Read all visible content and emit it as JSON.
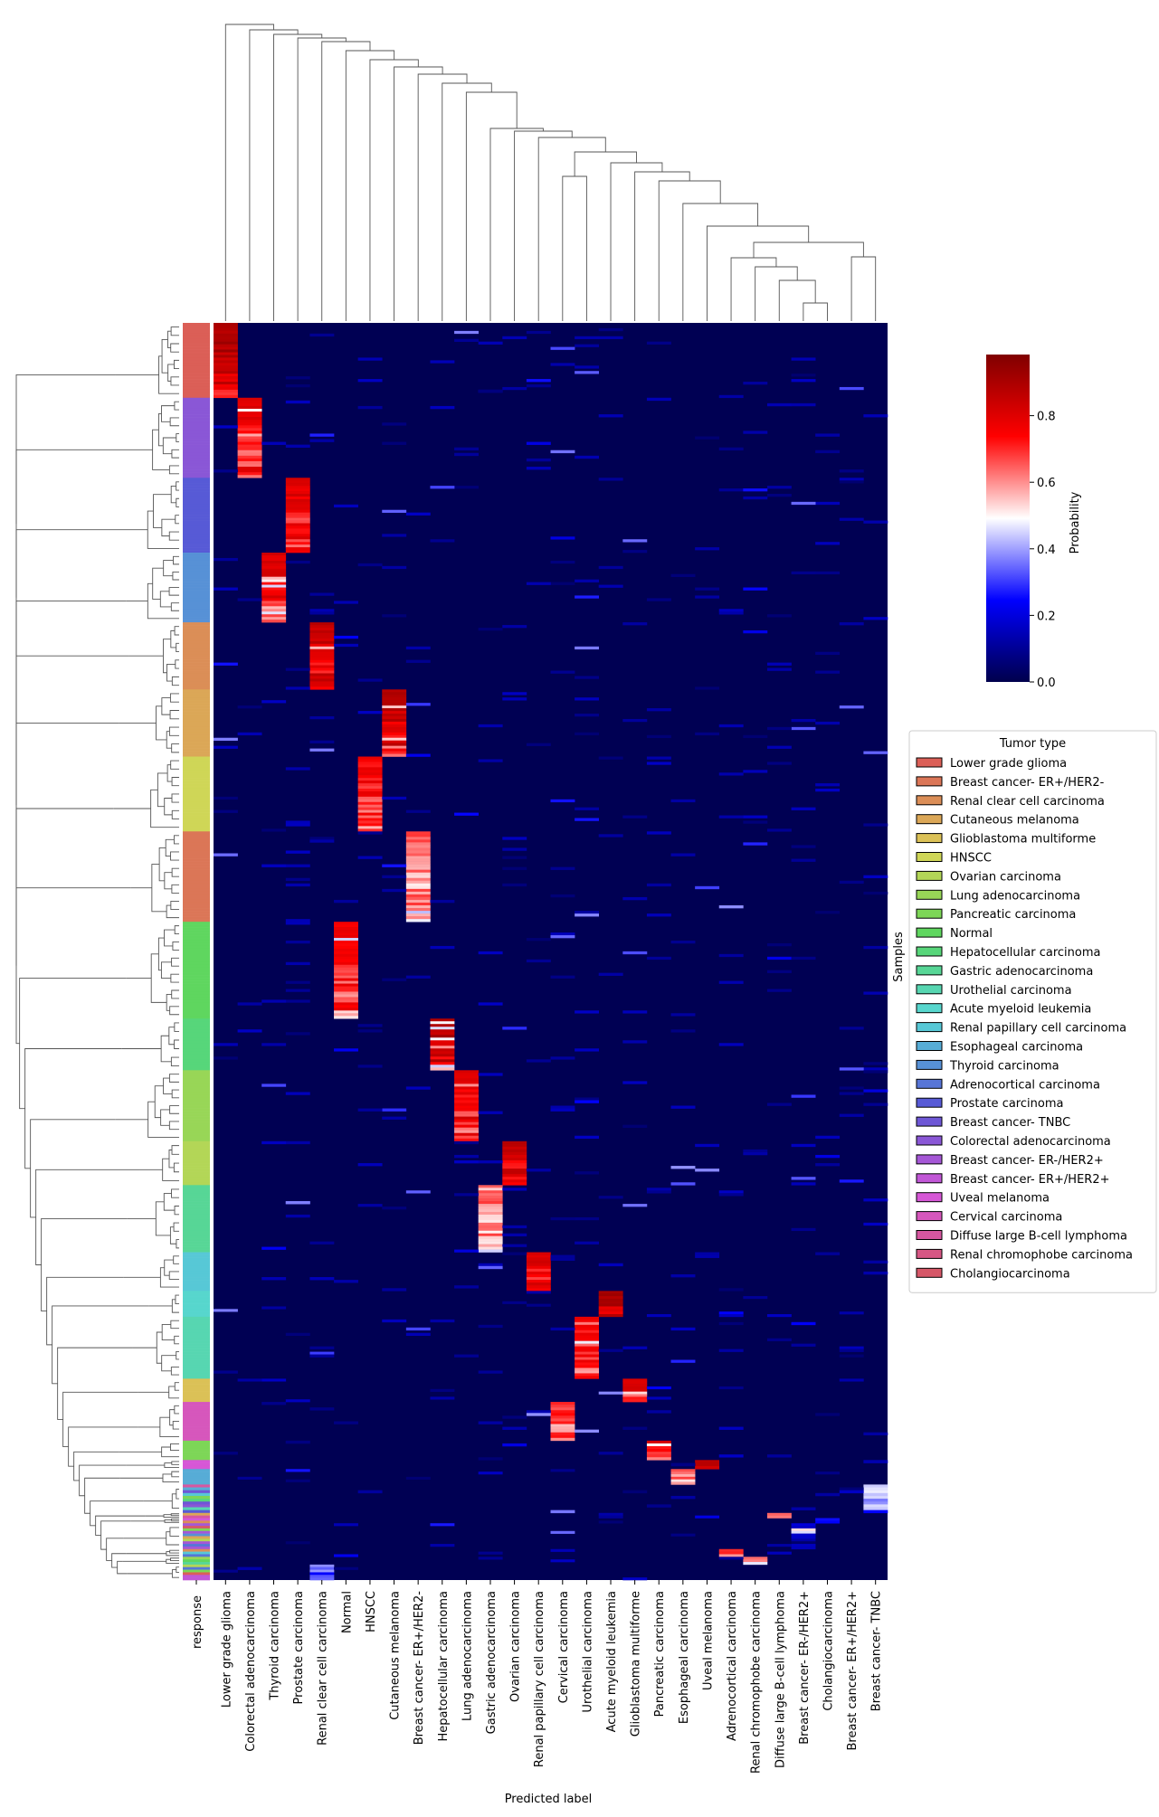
{
  "chart_data": {
    "type": "heatmap",
    "title": "",
    "xlabel": "Predicted label",
    "ylabel": "Samples",
    "side_color_label": "response",
    "columns": [
      "Lower grade glioma",
      "Colorectal adenocarcinoma",
      "Thyroid carcinoma",
      "Prostate carcinoma",
      "Renal clear cell carcinoma",
      "Normal",
      "HNSCC",
      "Cutaneous melanoma",
      "Breast cancer- ER+/HER2-",
      "Hepatocellular carcinoma",
      "Lung adenocarcinoma",
      "Gastric adenocarcinoma",
      "Ovarian carcinoma",
      "Renal papillary cell carcinoma",
      "Cervical carcinoma",
      "Urothelial carcinoma",
      "Acute myeloid leukemia",
      "Glioblastoma multiforme",
      "Pancreatic carcinoma",
      "Esophageal carcinoma",
      "Uveal melanoma",
      "Adrenocortical carcinoma",
      "Renal chromophobe carcinoma",
      "Diffuse large B-cell lymphoma",
      "Breast cancer- ER-/HER2+",
      "Cholangiocarcinoma",
      "Breast cancer- ER+/HER2+",
      "Breast cancer- TNBC"
    ],
    "colorbar": {
      "label": "Probability",
      "ticks": [
        "0.0",
        "0.2",
        "0.4",
        "0.6",
        "0.8"
      ],
      "range": [
        0,
        1
      ],
      "colormap": [
        "#00004c",
        "#0000ff",
        "#ffffff",
        "#ff0000",
        "#800000"
      ]
    },
    "legend": {
      "title": "Tumor type",
      "placement": "right",
      "items": [
        {
          "label": "Lower grade glioma",
          "color": "#db5f57"
        },
        {
          "label": "Breast cancer- ER+/HER2-",
          "color": "#db7657"
        },
        {
          "label": "Renal clear cell carcinoma",
          "color": "#db8e57"
        },
        {
          "label": "Cutaneous melanoma",
          "color": "#dba757"
        },
        {
          "label": "Glioblastoma multiforme",
          "color": "#dbc157"
        },
        {
          "label": "HNSCC",
          "color": "#cfd657"
        },
        {
          "label": "Ovarian carcinoma",
          "color": "#b3d657"
        },
        {
          "label": "Lung adenocarcinoma",
          "color": "#98d657"
        },
        {
          "label": "Pancreatic carcinoma",
          "color": "#7dd657"
        },
        {
          "label": "Normal",
          "color": "#5fd65f"
        },
        {
          "label": "Hepatocellular carcinoma",
          "color": "#57d67a"
        },
        {
          "label": "Gastric adenocarcinoma",
          "color": "#57d696"
        },
        {
          "label": "Urothelial carcinoma",
          "color": "#57d6b1"
        },
        {
          "label": "Acute myeloid leukemia",
          "color": "#57d6cd"
        },
        {
          "label": "Renal papillary cell carcinoma",
          "color": "#57c8d6"
        },
        {
          "label": "Esophageal carcinoma",
          "color": "#57acd6"
        },
        {
          "label": "Thyroid carcinoma",
          "color": "#5791d6"
        },
        {
          "label": "Adrenocortical carcinoma",
          "color": "#5775d6"
        },
        {
          "label": "Prostate carcinoma",
          "color": "#575ad6"
        },
        {
          "label": "Breast cancer- TNBC",
          "color": "#6e57d6"
        },
        {
          "label": "Colorectal adenocarcinoma",
          "color": "#8a57d6"
        },
        {
          "label": "Breast cancer- ER-/HER2+",
          "color": "#a557d6"
        },
        {
          "label": "Breast cancer- ER+/HER2+",
          "color": "#c157d6"
        },
        {
          "label": "Uveal melanoma",
          "color": "#d657d6"
        },
        {
          "label": "Cervical carcinoma",
          "color": "#d657bc"
        },
        {
          "label": "Diffuse large B-cell lymphoma",
          "color": "#d657a0"
        },
        {
          "label": "Renal chromophobe carcinoma",
          "color": "#d65784"
        },
        {
          "label": "Cholangiocarcinoma",
          "color": "#d65768"
        }
      ]
    },
    "sample_groups": [
      {
        "tumor": "Lower grade glioma",
        "predicted": "Lower grade glioma",
        "share": 0.058,
        "peak": 0.95
      },
      {
        "tumor": "Colorectal adenocarcinoma",
        "predicted": "Colorectal adenocarcinoma",
        "share": 0.062,
        "peak": 0.85
      },
      {
        "tumor": "Prostate carcinoma",
        "predicted": "Prostate carcinoma",
        "share": 0.058,
        "peak": 0.85
      },
      {
        "tumor": "Thyroid carcinoma",
        "predicted": "Thyroid carcinoma",
        "share": 0.054,
        "peak": 0.85
      },
      {
        "tumor": "Renal clear cell carcinoma",
        "predicted": "Renal clear cell carcinoma",
        "share": 0.052,
        "peak": 0.9
      },
      {
        "tumor": "Cutaneous melanoma",
        "predicted": "Cutaneous melanoma",
        "share": 0.052,
        "peak": 0.92
      },
      {
        "tumor": "HNSCC",
        "predicted": "HNSCC",
        "share": 0.058,
        "peak": 0.8
      },
      {
        "tumor": "Breast cancer- ER+/HER2-",
        "predicted": "Breast cancer- ER+/HER2-",
        "share": 0.07,
        "peak": 0.7
      },
      {
        "tumor": "Normal",
        "predicted": "Normal",
        "share": 0.075,
        "peak": 0.8
      },
      {
        "tumor": "Hepatocellular carcinoma",
        "predicted": "Hepatocellular carcinoma",
        "share": 0.04,
        "peak": 0.95
      },
      {
        "tumor": "Lung adenocarcinoma",
        "predicted": "Lung adenocarcinoma",
        "share": 0.055,
        "peak": 0.85
      },
      {
        "tumor": "Ovarian carcinoma",
        "predicted": "Ovarian carcinoma",
        "share": 0.034,
        "peak": 0.9
      },
      {
        "tumor": "Gastric adenocarcinoma",
        "predicted": "Gastric adenocarcinoma",
        "share": 0.052,
        "peak": 0.7
      },
      {
        "tumor": "Renal papillary cell carcinoma",
        "predicted": "Renal papillary cell carcinoma",
        "share": 0.03,
        "peak": 0.85
      },
      {
        "tumor": "Acute myeloid leukemia",
        "predicted": "Acute myeloid leukemia",
        "share": 0.02,
        "peak": 0.97
      },
      {
        "tumor": "Urothelial carcinoma",
        "predicted": "Urothelial carcinoma",
        "share": 0.048,
        "peak": 0.8
      },
      {
        "tumor": "Glioblastoma multiforme",
        "predicted": "Glioblastoma multiforme",
        "share": 0.018,
        "peak": 0.85
      },
      {
        "tumor": "Cervical carcinoma",
        "predicted": "Cervical carcinoma",
        "share": 0.03,
        "peak": 0.75
      },
      {
        "tumor": "Pancreatic carcinoma",
        "predicted": "Pancreatic carcinoma",
        "share": 0.015,
        "peak": 0.85
      },
      {
        "tumor": "Uveal melanoma",
        "predicted": "Uveal melanoma",
        "share": 0.007,
        "peak": 0.9
      },
      {
        "tumor": "Esophageal carcinoma",
        "predicted": "Esophageal carcinoma",
        "share": 0.012,
        "peak": 0.7
      },
      {
        "tumor": "Breast cancer- TNBC",
        "predicted": "Breast cancer- TNBC",
        "share": 0.022,
        "peak": 0.5
      },
      {
        "tumor": "Diffuse large B-cell lymphoma",
        "predicted": "Diffuse large B-cell lymphoma",
        "share": 0.004,
        "peak": 0.7
      },
      {
        "tumor": "Cholangiocarcinoma",
        "predicted": "Cholangiocarcinoma",
        "share": 0.004,
        "peak": 0.3
      },
      {
        "tumor": "Breast cancer- ER-/HER2+",
        "predicted": "Breast cancer- ER-/HER2+",
        "share": 0.02,
        "peak": 0.2
      },
      {
        "tumor": "Adrenocortical carcinoma",
        "predicted": "Adrenocortical carcinoma",
        "share": 0.006,
        "peak": 0.75
      },
      {
        "tumor": "Renal chromophobe carcinoma",
        "predicted": "Renal chromophobe carcinoma",
        "share": 0.006,
        "peak": 0.65
      },
      {
        "tumor": "Breast cancer- ER+/HER2+",
        "predicted": "Renal clear cell carcinoma",
        "share": 0.012,
        "peak": 0.4
      }
    ]
  }
}
